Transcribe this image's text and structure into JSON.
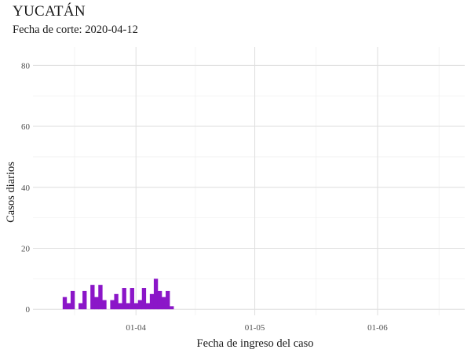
{
  "chart_data": {
    "type": "bar",
    "title": "YUCATÁN",
    "subtitle": "Fecha de corte: 2020-04-12",
    "xlabel": "Fecha de ingreso del caso",
    "ylabel": "Casos diarios",
    "ylim": [
      -2,
      86
    ],
    "yticks": [
      0,
      20,
      40,
      60,
      80
    ],
    "xlim": [
      "2020-03-06",
      "2020-06-23"
    ],
    "xticks": [
      {
        "date": "2020-04-01",
        "label": "01-04"
      },
      {
        "date": "2020-05-01",
        "label": "01-05"
      },
      {
        "date": "2020-06-01",
        "label": "01-06"
      }
    ],
    "grid": true,
    "bar_color": "#8B16C8",
    "x": [
      "2020-03-14",
      "2020-03-15",
      "2020-03-16",
      "2020-03-17",
      "2020-03-18",
      "2020-03-19",
      "2020-03-20",
      "2020-03-21",
      "2020-03-22",
      "2020-03-23",
      "2020-03-24",
      "2020-03-25",
      "2020-03-26",
      "2020-03-27",
      "2020-03-28",
      "2020-03-29",
      "2020-03-30",
      "2020-03-31",
      "2020-04-01",
      "2020-04-02",
      "2020-04-03",
      "2020-04-04",
      "2020-04-05",
      "2020-04-06",
      "2020-04-07",
      "2020-04-08",
      "2020-04-09",
      "2020-04-10",
      "2020-04-11",
      "2020-04-12"
    ],
    "values": [
      4,
      2,
      6,
      0,
      2,
      6,
      0,
      8,
      4,
      8,
      3,
      0,
      3,
      5,
      2,
      7,
      2,
      7,
      2,
      3,
      7,
      2,
      5,
      10,
      6,
      4,
      6,
      1,
      0,
      0
    ]
  }
}
